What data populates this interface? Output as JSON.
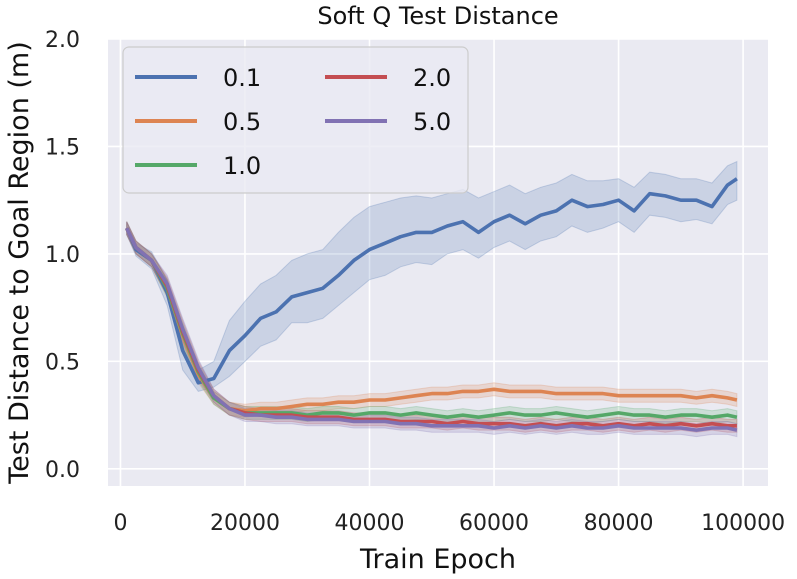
{
  "chart_data": {
    "type": "line",
    "title": "Soft Q Test Distance",
    "xlabel": "Train Epoch",
    "ylabel": "Test Distance to Goal Region (m)",
    "xlim": [
      -2000,
      104000
    ],
    "ylim": [
      -0.08,
      2.0
    ],
    "xticks": [
      0,
      20000,
      40000,
      60000,
      80000,
      100000
    ],
    "yticks": [
      0.0,
      0.5,
      1.0,
      1.5,
      2.0
    ],
    "xtick_labels": [
      "0",
      "20000",
      "40000",
      "60000",
      "80000",
      "100000"
    ],
    "ytick_labels": [
      "0.0",
      "0.5",
      "1.0",
      "1.5",
      "2.0"
    ],
    "grid": true,
    "legend": {
      "placement": "top-left",
      "columns": 2
    },
    "x": [
      1000,
      2500,
      5000,
      7500,
      10000,
      12500,
      15000,
      17500,
      20000,
      22500,
      25000,
      27500,
      30000,
      32500,
      35000,
      37500,
      40000,
      42500,
      45000,
      47500,
      50000,
      52500,
      55000,
      57500,
      60000,
      62500,
      65000,
      67500,
      70000,
      72500,
      75000,
      77500,
      80000,
      82500,
      85000,
      87500,
      90000,
      92500,
      95000,
      97500,
      99000
    ],
    "series": [
      {
        "name": "0.1",
        "color": "#4c72b0",
        "values": [
          1.12,
          1.02,
          0.97,
          0.82,
          0.55,
          0.4,
          0.42,
          0.55,
          0.62,
          0.7,
          0.73,
          0.8,
          0.82,
          0.84,
          0.9,
          0.97,
          1.02,
          1.05,
          1.08,
          1.1,
          1.1,
          1.13,
          1.15,
          1.1,
          1.15,
          1.18,
          1.14,
          1.18,
          1.2,
          1.25,
          1.22,
          1.23,
          1.25,
          1.2,
          1.28,
          1.27,
          1.25,
          1.25,
          1.22,
          1.32,
          1.35
        ],
        "lower": [
          1.09,
          0.99,
          0.93,
          0.76,
          0.46,
          0.36,
          0.38,
          0.43,
          0.5,
          0.57,
          0.6,
          0.68,
          0.68,
          0.7,
          0.76,
          0.82,
          0.88,
          0.9,
          0.94,
          0.96,
          0.95,
          1.0,
          1.02,
          0.98,
          1.03,
          1.06,
          1.02,
          1.06,
          1.08,
          1.13,
          1.1,
          1.12,
          1.15,
          1.1,
          1.18,
          1.17,
          1.15,
          1.16,
          1.14,
          1.23,
          1.25
        ],
        "upper": [
          1.15,
          1.05,
          1.01,
          0.88,
          0.64,
          0.46,
          0.5,
          0.69,
          0.78,
          0.86,
          0.9,
          0.97,
          1.0,
          1.02,
          1.1,
          1.17,
          1.22,
          1.24,
          1.26,
          1.27,
          1.26,
          1.28,
          1.3,
          1.26,
          1.29,
          1.32,
          1.28,
          1.31,
          1.33,
          1.37,
          1.34,
          1.34,
          1.35,
          1.31,
          1.38,
          1.37,
          1.35,
          1.35,
          1.33,
          1.41,
          1.43
        ]
      },
      {
        "name": "0.5",
        "color": "#dd8452",
        "values": [
          1.12,
          1.03,
          0.97,
          0.84,
          0.62,
          0.44,
          0.33,
          0.28,
          0.27,
          0.28,
          0.28,
          0.29,
          0.3,
          0.3,
          0.31,
          0.31,
          0.32,
          0.32,
          0.33,
          0.34,
          0.35,
          0.35,
          0.36,
          0.36,
          0.37,
          0.36,
          0.36,
          0.36,
          0.35,
          0.35,
          0.35,
          0.35,
          0.34,
          0.34,
          0.34,
          0.34,
          0.34,
          0.33,
          0.34,
          0.33,
          0.32
        ],
        "lower": [
          1.09,
          1.0,
          0.94,
          0.8,
          0.57,
          0.4,
          0.3,
          0.25,
          0.24,
          0.25,
          0.25,
          0.26,
          0.27,
          0.27,
          0.28,
          0.28,
          0.29,
          0.29,
          0.3,
          0.31,
          0.32,
          0.32,
          0.33,
          0.33,
          0.34,
          0.33,
          0.33,
          0.33,
          0.32,
          0.32,
          0.32,
          0.32,
          0.31,
          0.31,
          0.31,
          0.31,
          0.31,
          0.3,
          0.31,
          0.3,
          0.29
        ],
        "upper": [
          1.15,
          1.06,
          1.0,
          0.88,
          0.67,
          0.48,
          0.36,
          0.31,
          0.3,
          0.31,
          0.31,
          0.32,
          0.33,
          0.33,
          0.34,
          0.34,
          0.35,
          0.35,
          0.36,
          0.37,
          0.38,
          0.38,
          0.39,
          0.39,
          0.4,
          0.39,
          0.39,
          0.39,
          0.38,
          0.38,
          0.38,
          0.38,
          0.37,
          0.37,
          0.37,
          0.37,
          0.37,
          0.36,
          0.37,
          0.36,
          0.35
        ]
      },
      {
        "name": "1.0",
        "color": "#55a868",
        "values": [
          1.12,
          1.03,
          0.97,
          0.84,
          0.63,
          0.45,
          0.33,
          0.28,
          0.26,
          0.26,
          0.26,
          0.26,
          0.25,
          0.26,
          0.26,
          0.25,
          0.26,
          0.26,
          0.25,
          0.26,
          0.25,
          0.24,
          0.25,
          0.24,
          0.25,
          0.26,
          0.25,
          0.25,
          0.26,
          0.25,
          0.24,
          0.25,
          0.26,
          0.25,
          0.25,
          0.24,
          0.25,
          0.25,
          0.24,
          0.25,
          0.24
        ],
        "lower": [
          1.09,
          1.0,
          0.94,
          0.8,
          0.58,
          0.41,
          0.3,
          0.25,
          0.23,
          0.23,
          0.23,
          0.23,
          0.22,
          0.23,
          0.23,
          0.22,
          0.23,
          0.23,
          0.22,
          0.23,
          0.22,
          0.21,
          0.22,
          0.21,
          0.22,
          0.23,
          0.22,
          0.22,
          0.23,
          0.22,
          0.21,
          0.22,
          0.23,
          0.22,
          0.22,
          0.21,
          0.22,
          0.22,
          0.21,
          0.22,
          0.21
        ],
        "upper": [
          1.15,
          1.06,
          1.0,
          0.88,
          0.68,
          0.49,
          0.36,
          0.31,
          0.29,
          0.29,
          0.29,
          0.29,
          0.28,
          0.29,
          0.29,
          0.28,
          0.29,
          0.29,
          0.28,
          0.29,
          0.28,
          0.27,
          0.28,
          0.27,
          0.28,
          0.29,
          0.28,
          0.28,
          0.29,
          0.28,
          0.27,
          0.28,
          0.29,
          0.28,
          0.28,
          0.27,
          0.28,
          0.28,
          0.27,
          0.28,
          0.27
        ]
      },
      {
        "name": "2.0",
        "color": "#c44e52",
        "values": [
          1.12,
          1.03,
          0.97,
          0.85,
          0.64,
          0.46,
          0.34,
          0.28,
          0.26,
          0.25,
          0.25,
          0.25,
          0.24,
          0.24,
          0.24,
          0.23,
          0.23,
          0.23,
          0.22,
          0.22,
          0.22,
          0.21,
          0.22,
          0.21,
          0.21,
          0.21,
          0.2,
          0.21,
          0.2,
          0.21,
          0.21,
          0.2,
          0.21,
          0.2,
          0.21,
          0.2,
          0.21,
          0.2,
          0.21,
          0.2,
          0.2
        ],
        "lower": [
          1.09,
          1.0,
          0.94,
          0.81,
          0.59,
          0.42,
          0.31,
          0.25,
          0.23,
          0.22,
          0.22,
          0.22,
          0.21,
          0.21,
          0.21,
          0.2,
          0.2,
          0.2,
          0.19,
          0.19,
          0.19,
          0.18,
          0.19,
          0.18,
          0.18,
          0.18,
          0.17,
          0.18,
          0.17,
          0.18,
          0.18,
          0.17,
          0.18,
          0.17,
          0.18,
          0.17,
          0.18,
          0.17,
          0.18,
          0.17,
          0.17
        ],
        "upper": [
          1.15,
          1.06,
          1.0,
          0.89,
          0.69,
          0.5,
          0.37,
          0.31,
          0.29,
          0.28,
          0.28,
          0.28,
          0.27,
          0.27,
          0.27,
          0.26,
          0.26,
          0.26,
          0.25,
          0.25,
          0.25,
          0.24,
          0.25,
          0.24,
          0.24,
          0.24,
          0.23,
          0.24,
          0.23,
          0.24,
          0.24,
          0.23,
          0.24,
          0.23,
          0.24,
          0.23,
          0.24,
          0.23,
          0.24,
          0.23,
          0.23
        ]
      },
      {
        "name": "5.0",
        "color": "#8172b3",
        "values": [
          1.12,
          1.03,
          0.97,
          0.86,
          0.65,
          0.47,
          0.34,
          0.28,
          0.25,
          0.25,
          0.24,
          0.24,
          0.23,
          0.23,
          0.23,
          0.22,
          0.22,
          0.22,
          0.21,
          0.21,
          0.2,
          0.2,
          0.2,
          0.2,
          0.19,
          0.2,
          0.19,
          0.2,
          0.19,
          0.2,
          0.19,
          0.19,
          0.2,
          0.19,
          0.19,
          0.19,
          0.19,
          0.18,
          0.19,
          0.19,
          0.18
        ],
        "lower": [
          1.09,
          1.0,
          0.94,
          0.82,
          0.6,
          0.43,
          0.31,
          0.25,
          0.22,
          0.22,
          0.21,
          0.21,
          0.2,
          0.2,
          0.2,
          0.19,
          0.19,
          0.19,
          0.18,
          0.18,
          0.17,
          0.17,
          0.17,
          0.17,
          0.16,
          0.17,
          0.16,
          0.17,
          0.16,
          0.17,
          0.16,
          0.16,
          0.17,
          0.16,
          0.16,
          0.16,
          0.16,
          0.15,
          0.16,
          0.16,
          0.15
        ],
        "upper": [
          1.15,
          1.06,
          1.0,
          0.9,
          0.7,
          0.51,
          0.37,
          0.31,
          0.28,
          0.28,
          0.27,
          0.27,
          0.26,
          0.26,
          0.26,
          0.25,
          0.25,
          0.25,
          0.24,
          0.24,
          0.23,
          0.23,
          0.23,
          0.23,
          0.22,
          0.23,
          0.22,
          0.23,
          0.22,
          0.23,
          0.22,
          0.22,
          0.23,
          0.22,
          0.22,
          0.22,
          0.22,
          0.21,
          0.22,
          0.22,
          0.21
        ]
      }
    ]
  }
}
